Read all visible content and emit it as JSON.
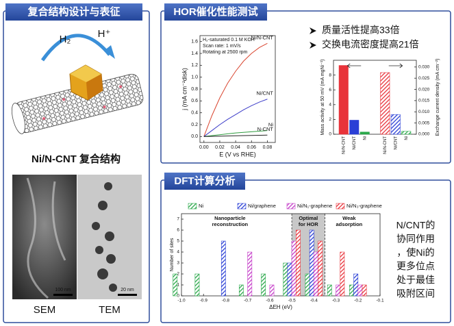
{
  "panels": {
    "structure": {
      "title": "复合结构设计与表征",
      "h2": "H₂",
      "hplus": "H⁺",
      "caption": "Ni/N-CNT 复合结构",
      "sem_scale": "100 nm",
      "tem_scale": "20 nm",
      "sem_label": "SEM",
      "tem_label": "TEM"
    },
    "hor": {
      "title": "HOR催化性能测试",
      "bullets": [
        "质量活性提高33倍",
        "交换电流密度提高21倍"
      ]
    },
    "dft": {
      "title": "DFT计算分析",
      "note_lines": [
        "N/CNT的",
        "协同作用",
        "，使Ni的",
        "更多位点",
        "处于最佳",
        "吸附区间"
      ]
    }
  },
  "chart_data": [
    {
      "type": "line",
      "annotations": [
        "H₂-saturated 0.1 M KOH",
        "Scan rate: 1 mV/s",
        "Rotating at 2500 rpm"
      ],
      "x_label": "E (V vs RHE)",
      "y_label": "j (mA cm⁻²disk)",
      "x": [
        0,
        0.01,
        0.02,
        0.03,
        0.04,
        0.05,
        0.06,
        0.07,
        0.08
      ],
      "series": [
        {
          "name": "Ni/N-CNT",
          "color": "#d9442e",
          "values": [
            0,
            0.35,
            0.65,
            0.9,
            1.1,
            1.27,
            1.4,
            1.5,
            1.57
          ]
        },
        {
          "name": "Ni/CNT",
          "color": "#3b3bc8",
          "values": [
            0,
            0.1,
            0.2,
            0.29,
            0.37,
            0.45,
            0.52,
            0.58,
            0.63
          ]
        },
        {
          "name": "Ni",
          "color": "#2e9b3e",
          "values": [
            0,
            0.015,
            0.03,
            0.045,
            0.06,
            0.07,
            0.08,
            0.09,
            0.1
          ]
        },
        {
          "name": "N-CNT",
          "color": "#222222",
          "values": [
            0,
            0.003,
            0.006,
            0.009,
            0.012,
            0.015,
            0.018,
            0.021,
            0.024
          ]
        }
      ],
      "xlim": [
        -0.005,
        0.09
      ],
      "ylim": [
        -0.1,
        1.7
      ],
      "xticks": [
        {
          "value": 0,
          "label": "0.00"
        },
        0.02,
        0.04,
        0.06,
        0.08
      ],
      "yticks": [
        {
          "value": 0,
          "label": "0.0"
        },
        0.2,
        0.4,
        0.6,
        0.8,
        {
          "value": 1,
          "label": "1.0"
        },
        1.2,
        1.4,
        1.6
      ]
    },
    {
      "type": "bar",
      "categories": [
        "Ni/N-CNT",
        "Ni/CNT",
        "Ni"
      ],
      "colors": [
        "#e8333a",
        "#2a3fd6",
        "#2aa84a"
      ],
      "y_label": "Mass activity at 50 mV (mA mgNi⁻¹)",
      "y2_label": "Exchange current density (mA cm⁻²)",
      "series": [
        {
          "values": [
            9.3,
            1.9,
            0.3
          ]
        },
        {
          "values": [
            0.0275,
            0.0088,
            0.0013
          ],
          "axis": "y2",
          "hatch": true
        }
      ],
      "ylim": [
        0,
        10
      ],
      "yticks": [
        0,
        2,
        4,
        6,
        8
      ],
      "y2lim": [
        0,
        0.033
      ],
      "y2ticks": [
        {
          "value": 0,
          "label": "0.000"
        },
        0.005,
        {
          "value": 0.01,
          "label": "0.010"
        },
        0.015,
        {
          "value": 0.02,
          "label": "0.020"
        },
        0.025,
        {
          "value": 0.03,
          "label": "0.030"
        }
      ]
    },
    {
      "type": "grouped_bar",
      "x_label": "ΔEH (eV)",
      "y_label": "Number of sites",
      "annotations": [
        [
          "Nanoparticle",
          "reconstruction"
        ],
        [
          "Optimal",
          "for HOR"
        ],
        [
          "Weak",
          "adsorption"
        ]
      ],
      "optimal_range": [
        -0.5,
        -0.35
      ],
      "x": [
        -1.0,
        -0.9,
        -0.8,
        -0.7,
        -0.6,
        -0.5,
        -0.4,
        -0.3,
        -0.2
      ],
      "series": [
        {
          "name": "Ni",
          "color": "#2aa84a",
          "values": [
            2,
            2,
            0,
            1,
            2,
            3,
            2,
            1,
            1
          ]
        },
        {
          "name": "Ni/graphene",
          "color": "#2a3fd6",
          "values": [
            0,
            0,
            5,
            0,
            0,
            3,
            6,
            0,
            2
          ]
        },
        {
          "name": "Ni/N₁-graphene",
          "color": "#c43bc8",
          "values": [
            0,
            0,
            0,
            4,
            1,
            5,
            4,
            1,
            1
          ]
        },
        {
          "name": "Ni/N₃-graphene",
          "color": "#e8333a",
          "values": [
            0,
            0,
            0,
            0,
            0,
            6,
            5,
            4,
            1
          ]
        }
      ],
      "xlim": [
        -1.0,
        -0.1
      ],
      "ylim": [
        0,
        7.5
      ],
      "xticks": [
        {
          "value": -1,
          "label": "-1.0"
        },
        -0.9,
        -0.8,
        -0.7,
        -0.6,
        -0.5,
        -0.4,
        -0.3,
        -0.2,
        -0.1
      ],
      "yticks": [
        0,
        1,
        2,
        3,
        4,
        5,
        6,
        7
      ]
    }
  ]
}
